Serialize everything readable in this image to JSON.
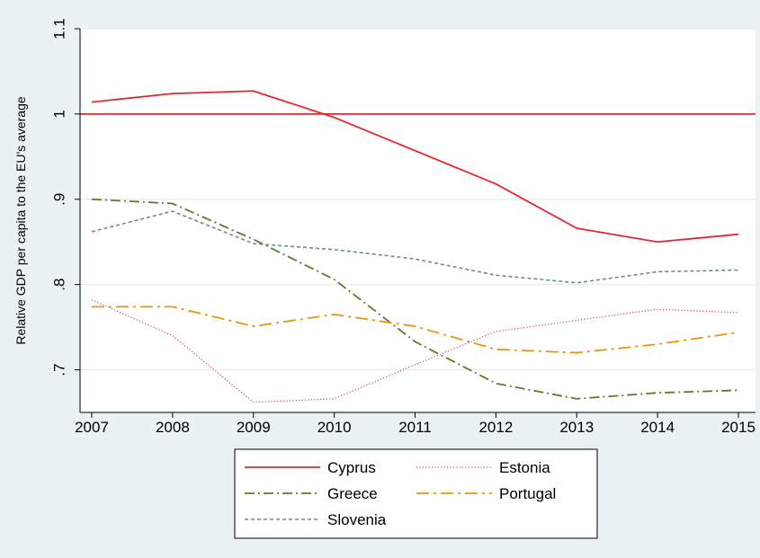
{
  "chart_data": {
    "type": "line",
    "title": "",
    "xlabel": "",
    "ylabel": "Relative GDP per capita to the EU's average",
    "x": [
      2007,
      2008,
      2009,
      2010,
      2011,
      2012,
      2013,
      2014,
      2015
    ],
    "xlim": [
      2007,
      2015
    ],
    "ylim": [
      0.65,
      1.1
    ],
    "y_ticks": [
      0.7,
      0.8,
      0.9,
      1,
      1.1
    ],
    "y_tick_labels": [
      ".7",
      ".8",
      ".9",
      "1",
      "1.1"
    ],
    "x_tick_labels": [
      "2007",
      "2008",
      "2009",
      "2010",
      "2011",
      "2012",
      "2013",
      "2014",
      "2015"
    ],
    "grid": true,
    "reference_line": 1.0,
    "legend_position": "bottom",
    "series": [
      {
        "name": "Cyprus",
        "color": "#e8262d",
        "dash": "solid",
        "values": [
          1.014,
          1.024,
          1.027,
          0.996,
          0.957,
          0.918,
          0.866,
          0.85,
          0.859
        ]
      },
      {
        "name": "Estonia",
        "color": "#d2417a",
        "dash": "dotted",
        "values": [
          0.782,
          0.74,
          0.662,
          0.666,
          0.706,
          0.745,
          0.758,
          0.771,
          0.767
        ]
      },
      {
        "name": "Greece",
        "color": "#5e7a2f",
        "dash": "dashdot",
        "values": [
          0.9,
          0.895,
          0.853,
          0.806,
          0.733,
          0.684,
          0.666,
          0.673,
          0.676
        ]
      },
      {
        "name": "Portugal",
        "color": "#e8950f",
        "dash": "longdash",
        "values": [
          0.774,
          0.774,
          0.751,
          0.765,
          0.751,
          0.724,
          0.72,
          0.73,
          0.744
        ]
      },
      {
        "name": "Slovenia",
        "color": "#6e8b8e",
        "dash": "shortdash",
        "values": [
          0.862,
          0.886,
          0.848,
          0.841,
          0.83,
          0.811,
          0.802,
          0.815,
          0.817
        ]
      }
    ]
  }
}
